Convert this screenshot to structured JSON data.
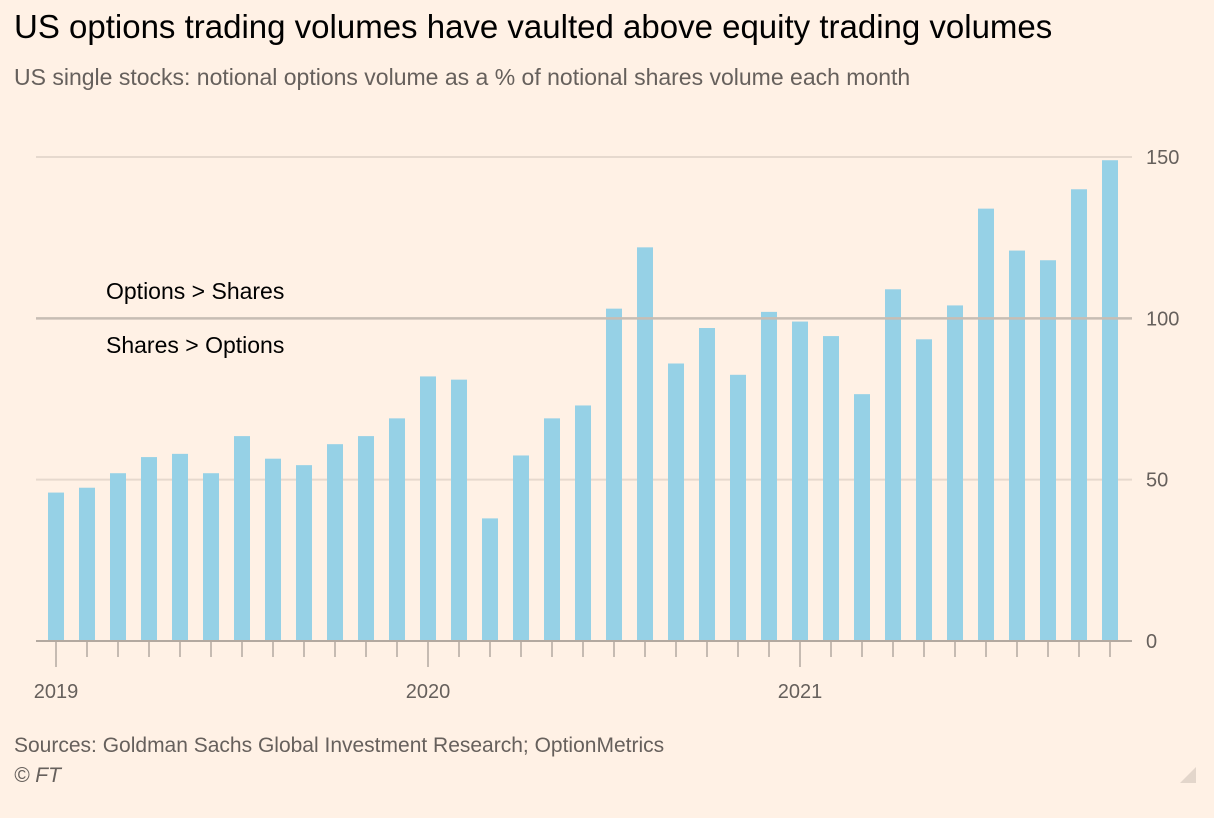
{
  "header": {
    "title": "US options trading volumes have vaulted above equity trading volumes",
    "subtitle": "US single stocks: notional options volume as a % of notional shares volume each month"
  },
  "footer": {
    "source": "Sources: Goldman Sachs Global Investment Research; OptionMetrics",
    "credit": "© FT"
  },
  "colors": {
    "background": "#FFF1E5",
    "bar": "#96D1E6",
    "gridline": "#E6D9CE",
    "reference_line": "#C7BDB4",
    "axis": "#B3A9A0"
  },
  "chart_data": {
    "type": "bar",
    "title": "US options trading volumes have vaulted above equity trading volumes",
    "subtitle": "US single stocks: notional options volume as a % of notional shares volume each month",
    "xlabel": "",
    "ylabel": "",
    "ylim": [
      0,
      150
    ],
    "yticks": [
      0,
      50,
      100,
      150
    ],
    "y_axis_side": "right",
    "grid": true,
    "legend": "none",
    "categories": [
      "2019-01",
      "2019-02",
      "2019-03",
      "2019-04",
      "2019-05",
      "2019-06",
      "2019-07",
      "2019-08",
      "2019-09",
      "2019-10",
      "2019-11",
      "2019-12",
      "2020-01",
      "2020-02",
      "2020-03",
      "2020-04",
      "2020-05",
      "2020-06",
      "2020-07",
      "2020-08",
      "2020-09",
      "2020-10",
      "2020-11",
      "2020-12",
      "2021-01",
      "2021-02",
      "2021-03",
      "2021-04",
      "2021-05",
      "2021-06",
      "2021-07",
      "2021-08",
      "2021-09",
      "2021-10",
      "2021-11"
    ],
    "values": [
      46,
      47.5,
      52,
      57,
      58,
      52,
      63.5,
      56.5,
      54.5,
      61,
      63.5,
      69,
      82,
      81,
      38,
      57.5,
      69,
      73,
      103,
      122,
      86,
      97,
      82.5,
      102,
      99,
      94.5,
      76.5,
      109,
      93.5,
      104,
      134,
      121,
      118,
      140,
      149
    ],
    "x_tick_labels": [
      {
        "label": "2019",
        "category": "2019-01"
      },
      {
        "label": "2020",
        "category": "2020-01"
      },
      {
        "label": "2021",
        "category": "2021-01"
      }
    ],
    "reference_line": 100,
    "annotations": [
      {
        "text": "Options > Shares",
        "position": "above reference line"
      },
      {
        "text": "Shares > Options",
        "position": "below reference line"
      }
    ]
  }
}
